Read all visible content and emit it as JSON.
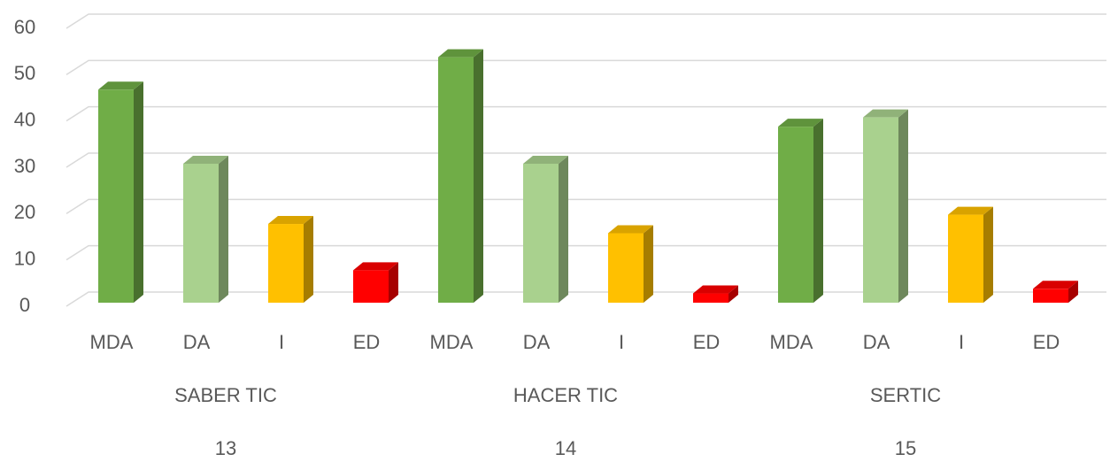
{
  "chart_data": {
    "type": "bar3d",
    "categories": [
      "MDA",
      "DA",
      "I",
      "ED",
      "MDA",
      "DA",
      "I",
      "ED",
      "MDA",
      "DA",
      "I",
      "ED"
    ],
    "values": [
      46,
      30,
      17,
      7,
      53,
      30,
      15,
      2,
      38,
      40,
      19,
      3
    ],
    "colors": [
      "#70ad47",
      "#a9d18e",
      "#ffc000",
      "#ff0000",
      "#70ad47",
      "#a9d18e",
      "#ffc000",
      "#ff0000",
      "#70ad47",
      "#a9d18e",
      "#ffc000",
      "#ff0000"
    ],
    "groups": [
      {
        "name": "SABER TIC",
        "code": "13"
      },
      {
        "name": "HACER TIC",
        "code": "14"
      },
      {
        "name": "SERTIC",
        "code": "15"
      }
    ],
    "ylim": [
      0,
      60
    ],
    "yticks": [
      0,
      10,
      20,
      30,
      40,
      50,
      60
    ],
    "grid": true
  }
}
